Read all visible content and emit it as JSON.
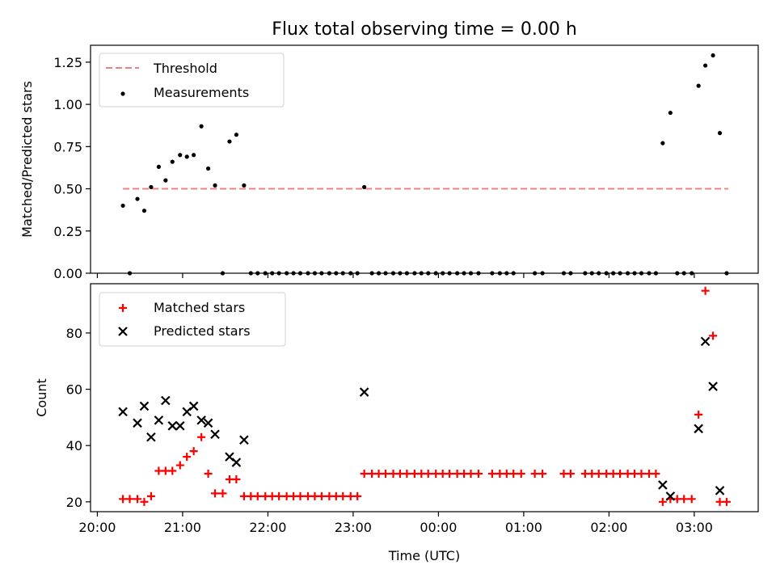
{
  "figure_title": "Flux total observing time = 0.00 h",
  "colors": {
    "threshold": "#f08080",
    "measurement": "#000000",
    "matched": "#ff0000",
    "predicted": "#000000"
  },
  "chart_data": [
    {
      "type": "scatter",
      "ylabel": "Matched/Predicted stars",
      "xlabel": "",
      "ylim": [
        0,
        1.35
      ],
      "xlim_hours": [
        19.92,
        27.75
      ],
      "yticks": [
        0.0,
        0.25,
        0.5,
        0.75,
        1.0,
        1.25
      ],
      "ytick_labels": [
        "0.00",
        "0.25",
        "0.50",
        "0.75",
        "1.00",
        "1.25"
      ],
      "grid": false,
      "legend": "top-left",
      "threshold": {
        "label": "Threshold",
        "value": 0.5,
        "x_range_hours": [
          20.3,
          27.4
        ]
      },
      "measurements": {
        "label": "Measurements",
        "points": [
          [
            20.3,
            0.4
          ],
          [
            20.38,
            0.0
          ],
          [
            20.47,
            0.44
          ],
          [
            20.55,
            0.37
          ],
          [
            20.63,
            0.51
          ],
          [
            20.72,
            0.63
          ],
          [
            20.8,
            0.55
          ],
          [
            20.88,
            0.66
          ],
          [
            20.97,
            0.7
          ],
          [
            21.05,
            0.69
          ],
          [
            21.13,
            0.7
          ],
          [
            21.22,
            0.87
          ],
          [
            21.3,
            0.62
          ],
          [
            21.38,
            0.52
          ],
          [
            21.47,
            0.0
          ],
          [
            21.55,
            0.78
          ],
          [
            21.63,
            0.82
          ],
          [
            21.72,
            0.52
          ],
          [
            21.8,
            0.0
          ],
          [
            21.88,
            0.0
          ],
          [
            21.97,
            0.0
          ],
          [
            22.05,
            0.0
          ],
          [
            22.13,
            0.0
          ],
          [
            22.22,
            0.0
          ],
          [
            22.3,
            0.0
          ],
          [
            22.38,
            0.0
          ],
          [
            22.47,
            0.0
          ],
          [
            22.55,
            0.0
          ],
          [
            22.63,
            0.0
          ],
          [
            22.72,
            0.0
          ],
          [
            22.8,
            0.0
          ],
          [
            22.88,
            0.0
          ],
          [
            22.97,
            0.0
          ],
          [
            23.05,
            0.0
          ],
          [
            23.13,
            0.51
          ],
          [
            23.22,
            0.0
          ],
          [
            23.3,
            0.0
          ],
          [
            23.38,
            0.0
          ],
          [
            23.47,
            0.0
          ],
          [
            23.55,
            0.0
          ],
          [
            23.63,
            0.0
          ],
          [
            23.72,
            0.0
          ],
          [
            23.8,
            0.0
          ],
          [
            23.88,
            0.0
          ],
          [
            23.97,
            0.0
          ],
          [
            24.05,
            0.0
          ],
          [
            24.13,
            0.0
          ],
          [
            24.22,
            0.0
          ],
          [
            24.3,
            0.0
          ],
          [
            24.38,
            0.0
          ],
          [
            24.47,
            0.0
          ],
          [
            24.63,
            0.0
          ],
          [
            24.72,
            0.0
          ],
          [
            24.8,
            0.0
          ],
          [
            24.88,
            0.0
          ],
          [
            25.13,
            0.0
          ],
          [
            25.22,
            0.0
          ],
          [
            25.47,
            0.0
          ],
          [
            25.55,
            0.0
          ],
          [
            25.72,
            0.0
          ],
          [
            25.8,
            0.0
          ],
          [
            25.88,
            0.0
          ],
          [
            25.97,
            0.0
          ],
          [
            26.05,
            0.0
          ],
          [
            26.13,
            0.0
          ],
          [
            26.22,
            0.0
          ],
          [
            26.3,
            0.0
          ],
          [
            26.38,
            0.0
          ],
          [
            26.47,
            0.0
          ],
          [
            26.55,
            0.0
          ],
          [
            26.63,
            0.77
          ],
          [
            26.72,
            0.95
          ],
          [
            26.8,
            0.0
          ],
          [
            26.88,
            0.0
          ],
          [
            26.97,
            0.0
          ],
          [
            27.05,
            1.11
          ],
          [
            27.13,
            1.23
          ],
          [
            27.22,
            1.29
          ],
          [
            27.3,
            0.83
          ],
          [
            27.38,
            0.0
          ]
        ]
      }
    },
    {
      "type": "scatter",
      "ylabel": "Count",
      "xlabel": "Time (UTC)",
      "ylim": [
        16.5,
        97.5
      ],
      "xlim_hours": [
        19.92,
        27.75
      ],
      "yticks": [
        20,
        40,
        60,
        80
      ],
      "ytick_labels": [
        "20",
        "40",
        "60",
        "80"
      ],
      "xticks_hours": [
        20,
        21,
        22,
        23,
        24,
        25,
        26,
        27
      ],
      "xtick_labels": [
        "20:00",
        "21:00",
        "22:00",
        "23:00",
        "00:00",
        "01:00",
        "02:00",
        "03:00"
      ],
      "grid": false,
      "legend": "top-left",
      "series": [
        {
          "name": "Matched stars",
          "marker": "plus",
          "points": [
            [
              20.3,
              21
            ],
            [
              20.38,
              21
            ],
            [
              20.47,
              21
            ],
            [
              20.55,
              20
            ],
            [
              20.63,
              22
            ],
            [
              20.72,
              31
            ],
            [
              20.8,
              31
            ],
            [
              20.88,
              31
            ],
            [
              20.97,
              33
            ],
            [
              21.05,
              36
            ],
            [
              21.13,
              38
            ],
            [
              21.22,
              43
            ],
            [
              21.3,
              30
            ],
            [
              21.38,
              23
            ],
            [
              21.47,
              23
            ],
            [
              21.55,
              28
            ],
            [
              21.63,
              28
            ],
            [
              21.72,
              22
            ],
            [
              21.8,
              22
            ],
            [
              21.88,
              22
            ],
            [
              21.97,
              22
            ],
            [
              22.05,
              22
            ],
            [
              22.13,
              22
            ],
            [
              22.22,
              22
            ],
            [
              22.3,
              22
            ],
            [
              22.38,
              22
            ],
            [
              22.47,
              22
            ],
            [
              22.55,
              22
            ],
            [
              22.63,
              22
            ],
            [
              22.72,
              22
            ],
            [
              22.8,
              22
            ],
            [
              22.88,
              22
            ],
            [
              22.97,
              22
            ],
            [
              23.05,
              22
            ],
            [
              23.13,
              30
            ],
            [
              23.22,
              30
            ],
            [
              23.3,
              30
            ],
            [
              23.38,
              30
            ],
            [
              23.47,
              30
            ],
            [
              23.55,
              30
            ],
            [
              23.63,
              30
            ],
            [
              23.72,
              30
            ],
            [
              23.8,
              30
            ],
            [
              23.88,
              30
            ],
            [
              23.97,
              30
            ],
            [
              24.05,
              30
            ],
            [
              24.13,
              30
            ],
            [
              24.22,
              30
            ],
            [
              24.3,
              30
            ],
            [
              24.38,
              30
            ],
            [
              24.47,
              30
            ],
            [
              24.63,
              30
            ],
            [
              24.72,
              30
            ],
            [
              24.8,
              30
            ],
            [
              24.88,
              30
            ],
            [
              24.97,
              30
            ],
            [
              25.13,
              30
            ],
            [
              25.22,
              30
            ],
            [
              25.47,
              30
            ],
            [
              25.55,
              30
            ],
            [
              25.72,
              30
            ],
            [
              25.8,
              30
            ],
            [
              25.88,
              30
            ],
            [
              25.97,
              30
            ],
            [
              26.05,
              30
            ],
            [
              26.13,
              30
            ],
            [
              26.22,
              30
            ],
            [
              26.3,
              30
            ],
            [
              26.38,
              30
            ],
            [
              26.47,
              30
            ],
            [
              26.55,
              30
            ],
            [
              26.63,
              20
            ],
            [
              26.72,
              21
            ],
            [
              26.8,
              21
            ],
            [
              26.88,
              21
            ],
            [
              26.97,
              21
            ],
            [
              27.05,
              51
            ],
            [
              27.13,
              95
            ],
            [
              27.22,
              79
            ],
            [
              27.3,
              20
            ],
            [
              27.38,
              20
            ]
          ]
        },
        {
          "name": "Predicted stars",
          "marker": "x",
          "points": [
            [
              20.3,
              52
            ],
            [
              20.47,
              48
            ],
            [
              20.55,
              54
            ],
            [
              20.63,
              43
            ],
            [
              20.72,
              49
            ],
            [
              20.8,
              56
            ],
            [
              20.88,
              47
            ],
            [
              20.97,
              47
            ],
            [
              21.05,
              52
            ],
            [
              21.13,
              54
            ],
            [
              21.22,
              49
            ],
            [
              21.3,
              48
            ],
            [
              21.38,
              44
            ],
            [
              21.55,
              36
            ],
            [
              21.63,
              34
            ],
            [
              21.72,
              42
            ],
            [
              23.13,
              59
            ],
            [
              26.63,
              26
            ],
            [
              26.72,
              22
            ],
            [
              27.05,
              46
            ],
            [
              27.13,
              77
            ],
            [
              27.22,
              61
            ],
            [
              27.3,
              24
            ]
          ]
        }
      ]
    }
  ]
}
